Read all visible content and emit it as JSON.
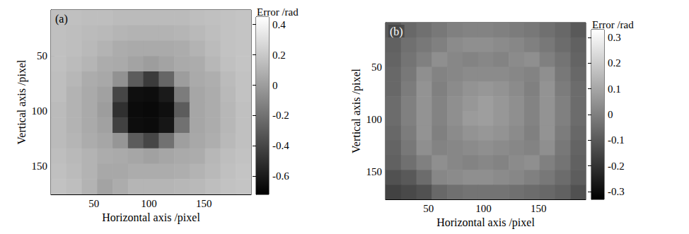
{
  "chart_data": [
    {
      "type": "heatmap",
      "panel_label": "(a)",
      "x_label": "Horizontal axis /pixel",
      "y_label": "Vertical axis /pixel",
      "x": [
        18,
        32,
        46,
        60,
        74,
        88,
        102,
        116,
        130,
        144,
        158,
        172,
        186
      ],
      "y": [
        15,
        29,
        43,
        57,
        71,
        85,
        99,
        113,
        127,
        141,
        155,
        169
      ],
      "xlim": [
        11,
        193
      ],
      "ylim": [
        8,
        176
      ],
      "xticks": [
        50,
        100,
        150
      ],
      "yticks": [
        50,
        100,
        150
      ],
      "cells": [
        [
          0.16,
          0.16,
          0.15,
          0.15,
          0.14,
          0.14,
          0.14,
          0.14,
          0.14,
          0.15,
          0.16,
          0.17,
          0.18
        ],
        [
          0.16,
          0.15,
          0.14,
          0.13,
          0.11,
          0.1,
          0.1,
          0.1,
          0.11,
          0.13,
          0.15,
          0.17,
          0.18
        ],
        [
          0.16,
          0.15,
          0.13,
          0.1,
          0.07,
          0.06,
          0.06,
          0.06,
          0.07,
          0.1,
          0.14,
          0.17,
          0.18
        ],
        [
          0.16,
          0.14,
          0.11,
          0.07,
          0.06,
          0.03,
          0.0,
          0.03,
          0.06,
          0.07,
          0.12,
          0.16,
          0.18
        ],
        [
          0.15,
          0.12,
          0.07,
          0.05,
          -0.05,
          -0.3,
          -0.45,
          -0.25,
          0.0,
          0.06,
          0.08,
          0.14,
          0.17
        ],
        [
          0.15,
          0.1,
          0.06,
          0.02,
          -0.4,
          -0.65,
          -0.66,
          -0.6,
          -0.15,
          0.04,
          0.07,
          0.13,
          0.17
        ],
        [
          0.14,
          0.1,
          0.06,
          0.0,
          -0.5,
          -0.67,
          -0.68,
          -0.65,
          -0.3,
          0.04,
          0.07,
          0.12,
          0.16
        ],
        [
          0.14,
          0.1,
          0.06,
          0.02,
          -0.42,
          -0.66,
          -0.67,
          -0.62,
          -0.2,
          0.04,
          0.07,
          0.12,
          0.16
        ],
        [
          0.14,
          0.11,
          0.07,
          0.04,
          -0.03,
          -0.3,
          -0.4,
          -0.2,
          0.01,
          0.05,
          0.08,
          0.13,
          0.16
        ],
        [
          0.15,
          0.13,
          0.1,
          0.07,
          0.06,
          0.04,
          0.02,
          0.04,
          0.06,
          0.07,
          0.12,
          0.15,
          0.17
        ],
        [
          0.16,
          0.14,
          0.1,
          0.05,
          0.05,
          0.07,
          0.07,
          0.07,
          0.08,
          0.1,
          0.13,
          0.16,
          0.18
        ],
        [
          0.17,
          0.15,
          0.1,
          0.03,
          0.07,
          0.11,
          0.11,
          0.11,
          0.12,
          0.13,
          0.15,
          0.17,
          0.18
        ]
      ],
      "colorbar": {
        "title": "Error /rad",
        "range": [
          -0.72,
          0.45
        ],
        "ticks": [
          -0.6,
          -0.4,
          -0.2,
          0,
          0.2,
          0.4
        ]
      }
    },
    {
      "type": "heatmap",
      "panel_label": "(b)",
      "x_label": "Horizontal axis /pixel",
      "y_label": "Vertical axis /pixel",
      "x": [
        18,
        32,
        46,
        60,
        74,
        88,
        102,
        116,
        130,
        144,
        158,
        172,
        186
      ],
      "y": [
        15,
        29,
        43,
        57,
        71,
        85,
        99,
        113,
        127,
        141,
        155,
        169
      ],
      "xlim": [
        11,
        193
      ],
      "ylim": [
        8,
        176
      ],
      "xticks": [
        50,
        100,
        150
      ],
      "yticks": [
        50,
        100,
        150
      ],
      "cells": [
        [
          -0.1,
          -0.06,
          -0.04,
          -0.02,
          0.0,
          0.01,
          0.01,
          0.0,
          -0.01,
          -0.02,
          -0.04,
          -0.06,
          -0.1
        ],
        [
          -0.08,
          -0.04,
          -0.02,
          0.0,
          0.03,
          0.04,
          0.04,
          0.03,
          0.02,
          0.0,
          -0.02,
          -0.05,
          -0.08
        ],
        [
          -0.07,
          -0.03,
          0.0,
          0.04,
          0.02,
          0.01,
          0.02,
          0.01,
          0.03,
          0.04,
          0.0,
          -0.03,
          -0.07
        ],
        [
          -0.06,
          -0.02,
          0.04,
          0.01,
          0.02,
          0.03,
          0.03,
          0.03,
          0.02,
          0.01,
          0.04,
          -0.02,
          -0.06
        ],
        [
          -0.06,
          -0.01,
          0.05,
          0.0,
          0.03,
          0.05,
          0.06,
          0.05,
          0.03,
          0.0,
          0.05,
          -0.01,
          -0.05
        ],
        [
          -0.05,
          0.0,
          0.05,
          0.01,
          0.04,
          0.06,
          0.08,
          0.06,
          0.04,
          0.01,
          0.05,
          0.0,
          -0.05
        ],
        [
          -0.05,
          0.0,
          0.05,
          0.01,
          0.04,
          0.07,
          0.08,
          0.06,
          0.04,
          0.01,
          0.05,
          0.0,
          -0.05
        ],
        [
          -0.06,
          -0.01,
          0.05,
          0.0,
          0.03,
          0.05,
          0.06,
          0.05,
          0.03,
          0.0,
          0.05,
          -0.01,
          -0.06
        ],
        [
          -0.07,
          -0.02,
          0.04,
          0.01,
          0.02,
          0.03,
          0.04,
          0.03,
          0.02,
          0.01,
          0.04,
          -0.02,
          -0.07
        ],
        [
          -0.08,
          -0.04,
          0.0,
          0.04,
          0.02,
          0.01,
          0.02,
          0.01,
          0.03,
          0.04,
          0.0,
          -0.03,
          -0.08
        ],
        [
          -0.12,
          -0.1,
          -0.05,
          0.02,
          0.03,
          0.04,
          0.04,
          0.03,
          0.02,
          0.0,
          -0.02,
          -0.05,
          -0.09
        ],
        [
          -0.16,
          -0.14,
          -0.12,
          -0.06,
          -0.04,
          -0.03,
          -0.03,
          -0.03,
          -0.04,
          -0.05,
          -0.06,
          -0.08,
          -0.12
        ]
      ],
      "colorbar": {
        "title": "Error /rad",
        "range": [
          -0.33,
          0.33
        ],
        "ticks": [
          -0.3,
          -0.2,
          -0.1,
          0,
          0.1,
          0.2,
          0.3
        ]
      }
    }
  ]
}
